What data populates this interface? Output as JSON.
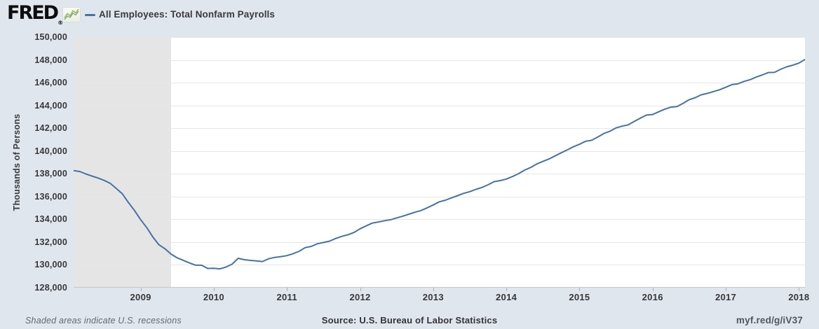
{
  "header": {
    "logo_text": "FRED",
    "registered_mark": "®",
    "legend_series_label": "All Employees: Total Nonfarm Payrolls"
  },
  "footer": {
    "recession_note": "Shaded areas indicate U.S. recessions",
    "source_label": "Source: U.S. Bureau of Labor Statistics",
    "short_url": "myf.red/g/iV37"
  },
  "colors": {
    "page_background": "#e0e6ee",
    "plot_background": "#ffffff",
    "series_line": "#4572a7",
    "recession_band": "#e5e5e5",
    "gridline": "#e7e7e7",
    "axis_line": "#c6c6c6",
    "tick_mark": "#aab0b6",
    "tick_text": "#383838",
    "logo_sparkline_green": "#9fbf62"
  },
  "chart_data": {
    "type": "line",
    "title": "All Employees: Total Nonfarm Payrolls",
    "ylabel": "Thousands of Persons",
    "xlabel": "",
    "units": "Thousands of Persons",
    "frequency": "monthly",
    "start_date": "2008-02",
    "end_date": "2018-02",
    "ylim": [
      128000,
      150000
    ],
    "y_ticks": [
      128000,
      130000,
      132000,
      134000,
      136000,
      138000,
      140000,
      142000,
      144000,
      146000,
      148000,
      150000
    ],
    "x_ticks": [
      2009,
      2010,
      2011,
      2012,
      2013,
      2014,
      2015,
      2016,
      2017,
      2018
    ],
    "grid": "horizontal",
    "legend_position": "top-left",
    "recession_bands": [
      {
        "start": "2007-12",
        "end": "2009-06"
      }
    ],
    "values": [
      138279,
      138199,
      137985,
      137803,
      137631,
      137421,
      137162,
      136714,
      136243,
      135475,
      134774,
      133976,
      133275,
      132449,
      131765,
      131411,
      130944,
      130617,
      130401,
      130174,
      129976,
      129970,
      129691,
      129705,
      129655,
      129811,
      130062,
      130578,
      130456,
      130395,
      130353,
      130296,
      130537,
      130661,
      130731,
      130815,
      130984,
      131196,
      131522,
      131626,
      131862,
      131967,
      132089,
      132322,
      132504,
      132648,
      132848,
      133172,
      133427,
      133670,
      133768,
      133881,
      133968,
      134128,
      134278,
      134453,
      134626,
      134771,
      135013,
      135261,
      135541,
      135682,
      135885,
      136084,
      136285,
      136434,
      136636,
      136800,
      137034,
      137311,
      137404,
      137539,
      137761,
      138013,
      138327,
      138557,
      138863,
      139087,
      139301,
      139571,
      139840,
      140102,
      140371,
      140592,
      140858,
      140943,
      141222,
      141535,
      141743,
      142031,
      142182,
      142292,
      142604,
      142887,
      143157,
      143204,
      143441,
      143676,
      143851,
      143895,
      144184,
      144509,
      144685,
      144934,
      145058,
      145222,
      145377,
      145596,
      145828,
      145901,
      146108,
      146263,
      146493,
      146681,
      146889,
      146903,
      147174,
      147390,
      147537,
      147713,
      148036
    ]
  }
}
